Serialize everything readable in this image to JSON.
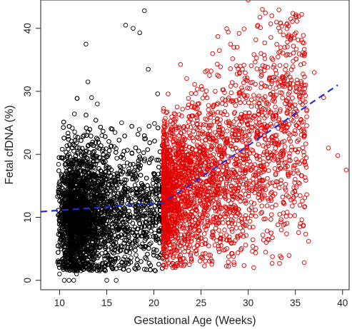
{
  "chart_data": {
    "type": "scatter",
    "title": "",
    "xlabel": "Gestational Age (Weeks)",
    "ylabel": "Fetal cfDNA (%)",
    "xlim": [
      8,
      40.7
    ],
    "ylim": [
      -1.5,
      44.5
    ],
    "xticks": [
      10,
      15,
      20,
      25,
      30,
      35,
      40
    ],
    "yticks": [
      0,
      10,
      20,
      30,
      40
    ],
    "x_tick_labels": [
      "10",
      "15",
      "20",
      "25",
      "30",
      "35",
      "40"
    ],
    "y_tick_labels": [
      "0",
      "10",
      "20",
      "30",
      "40"
    ],
    "grid": false,
    "legend": "none",
    "series": [
      {
        "color": "#000000",
        "marker": "open-circle",
        "x_range": [
          9.8,
          21.0
        ],
        "density_profile": [
          {
            "x": 10,
            "y_mean": 9.5
          },
          {
            "x": 12.5,
            "y_mean": 10.5
          },
          {
            "x": 15,
            "y_mean": 10.8
          },
          {
            "x": 21,
            "y_mean": 11.2
          }
        ],
        "points": [
          [
            10.0,
            1.0
          ],
          [
            10.5,
            0.0
          ],
          [
            11.0,
            0.0
          ],
          [
            11.5,
            0.0
          ],
          [
            11.8,
            1.0
          ],
          [
            12.8,
            37.5
          ],
          [
            13.0,
            31.5
          ],
          [
            13.4,
            29.0
          ],
          [
            14.0,
            28.0
          ],
          [
            15.0,
            0.0
          ],
          [
            16.0,
            0.0
          ],
          [
            17.0,
            40.5
          ],
          [
            17.8,
            40.0
          ],
          [
            18.5,
            39.3
          ],
          [
            19.0,
            42.8
          ],
          [
            19.4,
            33.5
          ],
          [
            20.4,
            29.6
          ]
        ]
      },
      {
        "color": "#e00000",
        "marker": "open-circle",
        "x_range": [
          21.0,
          40.5
        ],
        "density_profile": [
          {
            "x": 21,
            "y_mean": 13.5
          },
          {
            "x": 25,
            "y_mean": 15.5
          },
          {
            "x": 30,
            "y_mean": 20.0
          },
          {
            "x": 35,
            "y_mean": 25.0
          }
        ],
        "points": [
          [
            30.0,
            44.5
          ],
          [
            31.5,
            43.0
          ],
          [
            32.5,
            42.0
          ],
          [
            33.0,
            41.0
          ],
          [
            34.5,
            41.5
          ],
          [
            36.0,
            36.0
          ],
          [
            37.0,
            33.0
          ],
          [
            38.0,
            29.0
          ],
          [
            39.5,
            19.8
          ],
          [
            40.4,
            17.5
          ],
          [
            38.5,
            21.0
          ],
          [
            36.4,
            6.2
          ],
          [
            33.5,
            8.0
          ],
          [
            28.5,
            2.5
          ],
          [
            22.0,
            2.0
          ],
          [
            26.0,
            4.0
          ]
        ]
      }
    ],
    "fit_line": {
      "color": "#1f2fd6",
      "style": "dashed",
      "points": [
        [
          8,
          10.9
        ],
        [
          21,
          12.3
        ],
        [
          39.5,
          31.0
        ]
      ]
    }
  }
}
